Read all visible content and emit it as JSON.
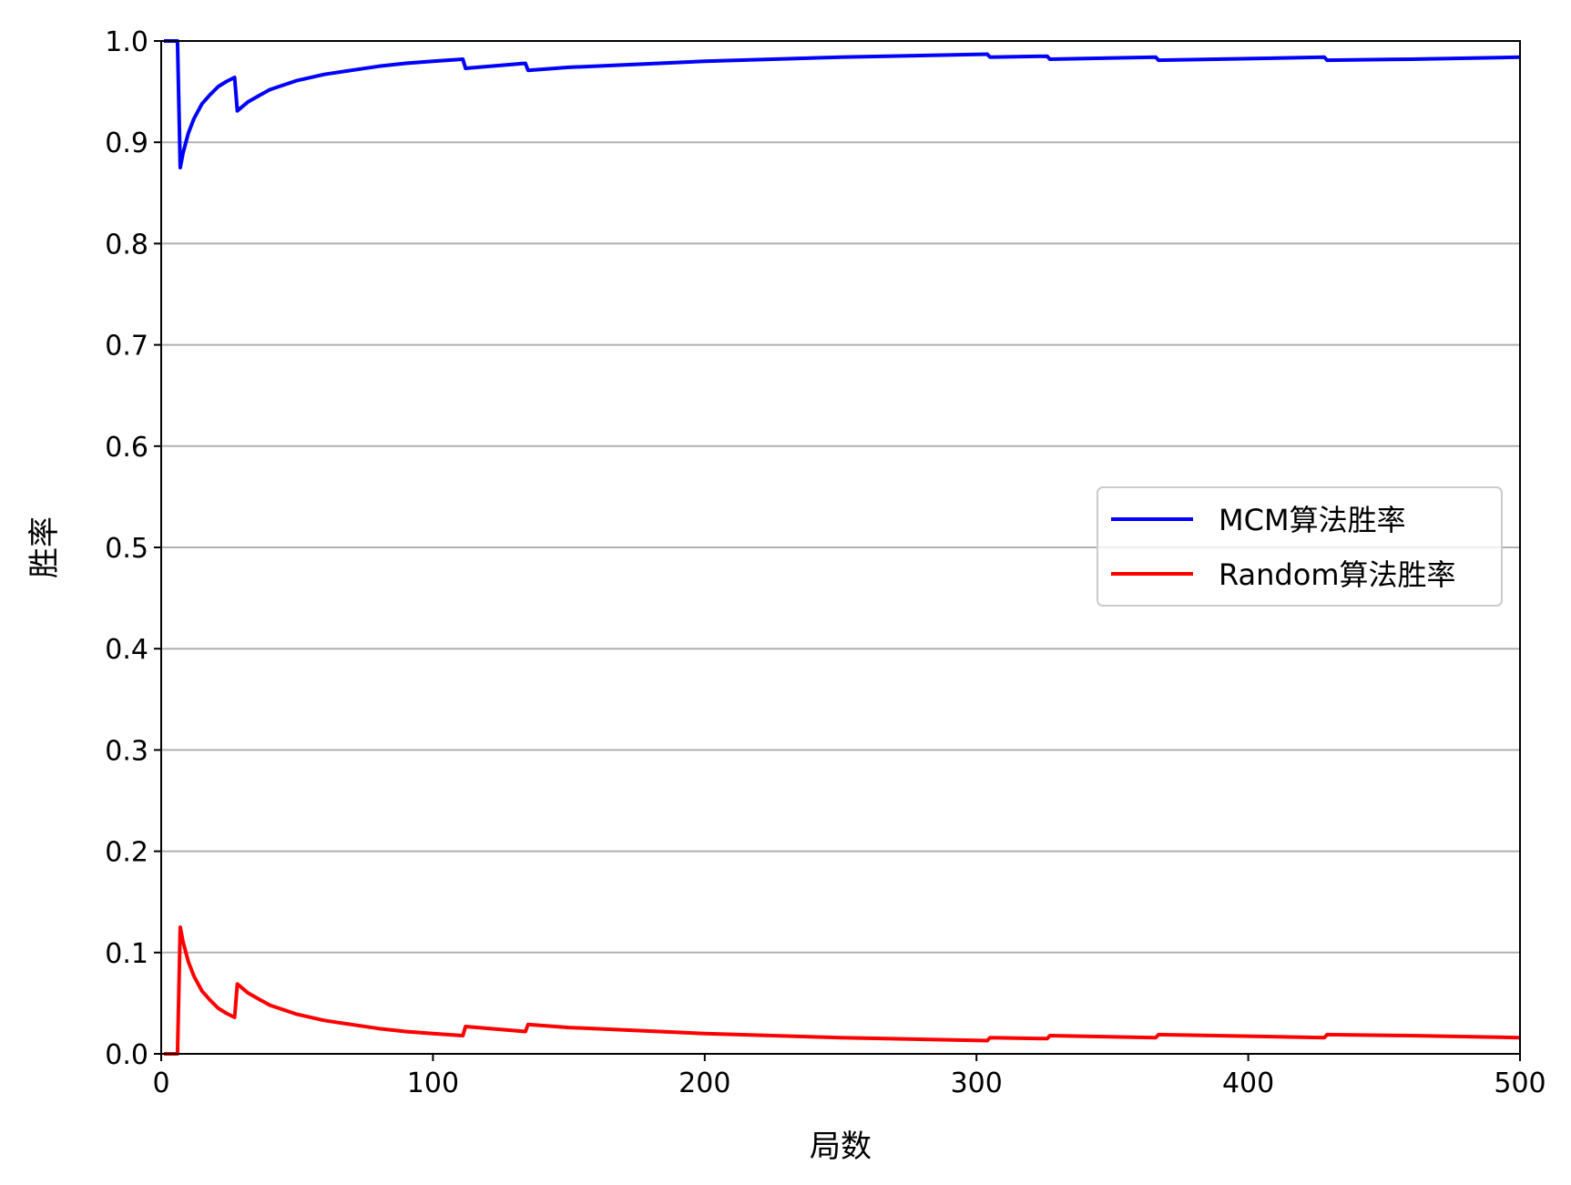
{
  "chart_data": {
    "type": "line",
    "xlabel": "局数",
    "ylabel": "胜率",
    "xlim": [
      0,
      500
    ],
    "ylim": [
      0,
      1.0
    ],
    "xticks": [
      0,
      100,
      200,
      300,
      400,
      500
    ],
    "xtick_labels": [
      "0",
      "100",
      "200",
      "300",
      "400",
      "500"
    ],
    "yticks": [
      0,
      0.1,
      0.2,
      0.3,
      0.4,
      0.5,
      0.6,
      0.7,
      0.8,
      0.9,
      1.0
    ],
    "ytick_labels": [
      "0.0",
      "0.1",
      "0.2",
      "0.3",
      "0.4",
      "0.5",
      "0.6",
      "0.7",
      "0.8",
      "0.9",
      "1.0"
    ],
    "grid": "horizontal",
    "legend_position": "center-right",
    "series": [
      {
        "name": "MCM算法胜率",
        "color": "#0000ff",
        "points": [
          [
            1,
            1.0
          ],
          [
            6,
            1.0
          ],
          [
            7,
            0.875
          ],
          [
            8,
            0.889
          ],
          [
            10,
            0.909
          ],
          [
            12,
            0.923
          ],
          [
            15,
            0.938
          ],
          [
            18,
            0.947
          ],
          [
            21,
            0.955
          ],
          [
            24,
            0.96
          ],
          [
            27,
            0.964
          ],
          [
            28,
            0.931
          ],
          [
            32,
            0.94
          ],
          [
            36,
            0.946
          ],
          [
            40,
            0.952
          ],
          [
            50,
            0.961
          ],
          [
            60,
            0.967
          ],
          [
            70,
            0.971
          ],
          [
            80,
            0.975
          ],
          [
            90,
            0.978
          ],
          [
            100,
            0.98
          ],
          [
            111,
            0.982
          ],
          [
            112,
            0.973
          ],
          [
            134,
            0.978
          ],
          [
            135,
            0.971
          ],
          [
            150,
            0.974
          ],
          [
            175,
            0.977
          ],
          [
            200,
            0.98
          ],
          [
            250,
            0.984
          ],
          [
            304,
            0.987
          ],
          [
            305,
            0.984
          ],
          [
            326,
            0.985
          ],
          [
            327,
            0.982
          ],
          [
            366,
            0.984
          ],
          [
            367,
            0.981
          ],
          [
            428,
            0.984
          ],
          [
            429,
            0.981
          ],
          [
            460,
            0.982
          ],
          [
            500,
            0.984
          ]
        ]
      },
      {
        "name": "Random算法胜率",
        "color": "#ff0000",
        "points": [
          [
            1,
            0.0
          ],
          [
            6,
            0.0
          ],
          [
            7,
            0.125
          ],
          [
            8,
            0.111
          ],
          [
            10,
            0.091
          ],
          [
            12,
            0.077
          ],
          [
            15,
            0.062
          ],
          [
            18,
            0.053
          ],
          [
            21,
            0.045
          ],
          [
            24,
            0.04
          ],
          [
            27,
            0.036
          ],
          [
            28,
            0.069
          ],
          [
            32,
            0.06
          ],
          [
            36,
            0.054
          ],
          [
            40,
            0.048
          ],
          [
            50,
            0.039
          ],
          [
            60,
            0.033
          ],
          [
            70,
            0.029
          ],
          [
            80,
            0.025
          ],
          [
            90,
            0.022
          ],
          [
            100,
            0.02
          ],
          [
            111,
            0.018
          ],
          [
            112,
            0.027
          ],
          [
            134,
            0.022
          ],
          [
            135,
            0.029
          ],
          [
            150,
            0.026
          ],
          [
            175,
            0.023
          ],
          [
            200,
            0.02
          ],
          [
            250,
            0.016
          ],
          [
            304,
            0.013
          ],
          [
            305,
            0.016
          ],
          [
            326,
            0.015
          ],
          [
            327,
            0.018
          ],
          [
            366,
            0.016
          ],
          [
            367,
            0.019
          ],
          [
            428,
            0.016
          ],
          [
            429,
            0.019
          ],
          [
            460,
            0.018
          ],
          [
            500,
            0.016
          ]
        ]
      }
    ]
  }
}
